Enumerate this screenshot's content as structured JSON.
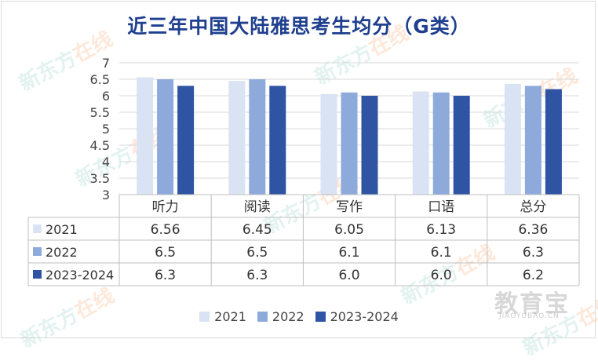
{
  "title": "近三年中国大陆雅思考生均分（G类）",
  "chart_data": {
    "type": "bar",
    "title": "近三年中国大陆雅思考生均分（G类）",
    "categories": [
      "听力",
      "阅读",
      "写作",
      "口语",
      "总分"
    ],
    "series": [
      {
        "name": "2021",
        "color": "#dae3f3",
        "values": [
          6.56,
          6.45,
          6.05,
          6.13,
          6.36
        ],
        "labels": [
          "6.56",
          "6.45",
          "6.05",
          "6.13",
          "6.36"
        ]
      },
      {
        "name": "2022",
        "color": "#8eaadb",
        "values": [
          6.5,
          6.5,
          6.1,
          6.1,
          6.3
        ],
        "labels": [
          "6.5",
          "6.5",
          "6.1",
          "6.1",
          "6.3"
        ]
      },
      {
        "name": "2023-2024",
        "color": "#2f54a3",
        "values": [
          6.3,
          6.3,
          6.0,
          6.0,
          6.2
        ],
        "labels": [
          "6.3",
          "6.3",
          "6.0",
          "6.0",
          "6.2"
        ]
      }
    ],
    "ylim": [
      3,
      7
    ],
    "yticks": [
      "3",
      "3.5",
      "4",
      "4.5",
      "5",
      "5.5",
      "6",
      "6.5",
      "7"
    ],
    "grid": true,
    "legend": "bottom",
    "data_table": true
  },
  "watermark": {
    "brand": "新东方",
    "brand_suffix": "在线",
    "logo": "教育宝",
    "logo_sub": "JIAOYUBAO.CN"
  }
}
